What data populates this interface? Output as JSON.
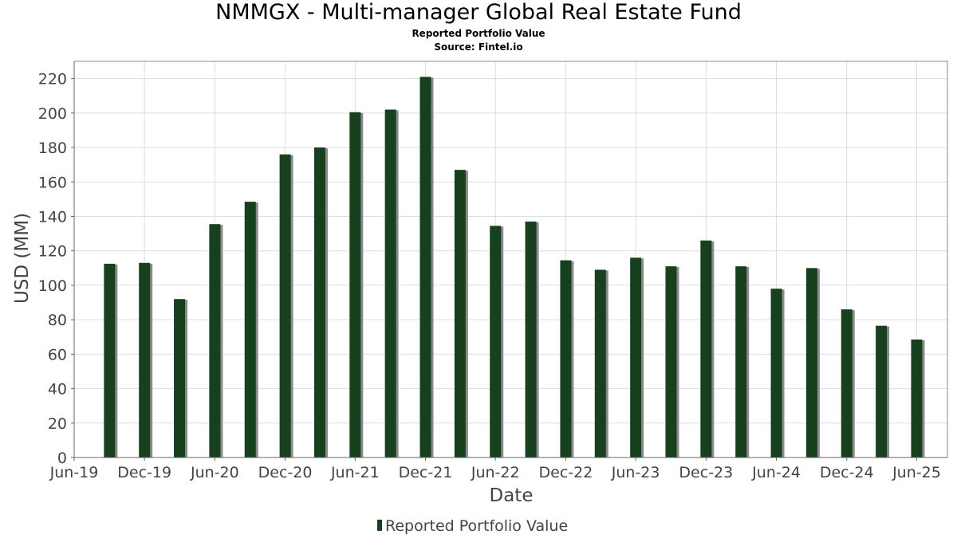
{
  "chart_data": {
    "type": "bar",
    "title": "NMMGX - Multi-manager Global Real Estate Fund",
    "subtitle": "Reported Portfolio Value",
    "source": "Source: Fintel.io",
    "xlabel": "Date",
    "ylabel": "USD (MM)",
    "ylim": [
      0,
      230
    ],
    "yticks": [
      0,
      20,
      40,
      60,
      80,
      100,
      120,
      140,
      160,
      180,
      200,
      220
    ],
    "xlim": [
      "2019-06-01",
      "2025-08-20"
    ],
    "xtick_labels": [
      "Jun-19",
      "Dec-19",
      "Jun-20",
      "Dec-20",
      "Jun-21",
      "Dec-21",
      "Jun-22",
      "Dec-22",
      "Jun-23",
      "Dec-23",
      "Jun-24",
      "Dec-24",
      "Jun-25"
    ],
    "xtick_dates": [
      "2019-06-01",
      "2019-12-01",
      "2020-06-01",
      "2020-12-01",
      "2021-06-01",
      "2021-12-01",
      "2022-06-01",
      "2022-12-01",
      "2023-06-01",
      "2023-12-01",
      "2024-06-01",
      "2024-12-01",
      "2025-06-01"
    ],
    "grid": true,
    "legend_position": "bottom-center",
    "colors": {
      "bar": "#17401f",
      "shadow": "#8a8a8a",
      "grid": "#dddddd",
      "frame": "#888888"
    },
    "series": [
      {
        "name": "Reported Portfolio Value",
        "points": [
          {
            "x": "2019-09-01",
            "y": 112.5
          },
          {
            "x": "2019-12-01",
            "y": 113
          },
          {
            "x": "2020-03-01",
            "y": 92
          },
          {
            "x": "2020-06-01",
            "y": 135.5
          },
          {
            "x": "2020-09-01",
            "y": 148.5
          },
          {
            "x": "2020-12-01",
            "y": 176
          },
          {
            "x": "2021-03-01",
            "y": 180
          },
          {
            "x": "2021-06-01",
            "y": 200.5
          },
          {
            "x": "2021-09-01",
            "y": 202
          },
          {
            "x": "2021-12-01",
            "y": 221
          },
          {
            "x": "2022-03-01",
            "y": 167
          },
          {
            "x": "2022-06-01",
            "y": 134.5
          },
          {
            "x": "2022-09-01",
            "y": 137
          },
          {
            "x": "2022-12-01",
            "y": 114.5
          },
          {
            "x": "2023-03-01",
            "y": 109
          },
          {
            "x": "2023-06-01",
            "y": 116
          },
          {
            "x": "2023-09-01",
            "y": 111
          },
          {
            "x": "2023-12-01",
            "y": 126
          },
          {
            "x": "2024-03-01",
            "y": 111
          },
          {
            "x": "2024-06-01",
            "y": 98
          },
          {
            "x": "2024-09-01",
            "y": 110
          },
          {
            "x": "2024-12-01",
            "y": 86
          },
          {
            "x": "2025-03-01",
            "y": 76.5
          },
          {
            "x": "2025-06-01",
            "y": 68.5
          }
        ]
      }
    ]
  }
}
